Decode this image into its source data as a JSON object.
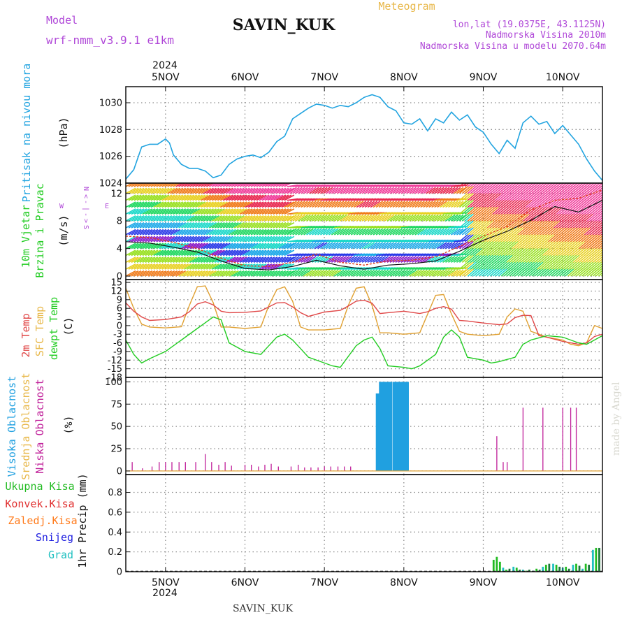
{
  "header": {
    "model_label": "Model",
    "model_name": "wrf-nmm_v3.9.1 e1km",
    "station": "SAVIN_KUK",
    "meteogram": "Meteogram",
    "lonlat": "lon,lat (19.0375E, 43.1125N)",
    "elevation": "Nadmorska Visina 2010m",
    "model_elevation": "Nadmorska Visina u modelu 2070.64m",
    "year": "2024",
    "footer_station": "SAVIN_KUK",
    "credit": "made by Angel"
  },
  "colors": {
    "pressure": "#22a4e0",
    "wind_speed": "#111111",
    "wind_gust": "#e04020",
    "temp_2m": "#e04848",
    "temp_sfc": "#e0a030",
    "dewpoint": "#22cc22",
    "cloud_high": "#20a0e0",
    "cloud_mid": "#e0a030",
    "cloud_low": "#c0209a",
    "precip_total": "#22bb22",
    "precip_conv": "#e03030",
    "precip_frozen": "#ff7a1a",
    "precip_snow": "#2020e0",
    "precip_graupel": "#20c0c0",
    "purple_text": "#b048d8",
    "gold_text": "#e8b84a"
  },
  "x_axis": {
    "days": [
      "5NOV",
      "6NOV",
      "7NOV",
      "8NOV",
      "9NOV",
      "10NOV"
    ],
    "day_positions": [
      0.5,
      1.5,
      2.5,
      3.5,
      4.5,
      5.5
    ],
    "range": [
      0,
      6
    ]
  },
  "panels": {
    "pressure": {
      "labels": [
        "Pritisak na nivou mora",
        "(hPa)"
      ],
      "ticks": [
        "1024",
        "1026",
        "1028",
        "1030"
      ]
    },
    "wind": {
      "labels": [
        "10m Vjetar",
        "Brzina i Pravac",
        "(m/s)"
      ],
      "ticks": [
        "0",
        "4",
        "8",
        "12"
      ],
      "compass": [
        "N",
        "<",
        "-",
        "|",
        "-",
        ">",
        "S",
        "W",
        "E"
      ]
    },
    "temperature": {
      "labels": [
        "2m Temp",
        "SFC Temp",
        "dewpt Temp",
        "(C)"
      ],
      "ticks": [
        "-18",
        "-15",
        "-12",
        "-9",
        "-6",
        "-3",
        "0",
        "3",
        "6",
        "9",
        "12",
        "15"
      ]
    },
    "clouds": {
      "labels": [
        "Visoka Oblacnost",
        "Srednja Oblacnost",
        "Niska Oblacnost",
        "(%)"
      ],
      "ticks": [
        "0",
        "25",
        "50",
        "75",
        "100"
      ]
    },
    "precip": {
      "labels": [
        "Ukupna Kisa",
        "Konvek.Kisa",
        "Zaledj.Kisa",
        "Snijeg",
        "Grad",
        "1hr Precip (mm)"
      ],
      "ticks": [
        "0",
        "0.2",
        "0.4",
        "0.6",
        "0.8"
      ]
    }
  },
  "chart_data": [
    {
      "type": "line",
      "title": "Pritisak na nivou mora",
      "ylabel": "(hPa)",
      "ylim": [
        1024,
        1031.2
      ],
      "x_unit": "days from 4 NOV 12:00 (day labels at 5NOV..10NOV)",
      "series": [
        {
          "name": "Pritisak na nivou mora",
          "x": [
            0,
            0.1,
            0.2,
            0.3,
            0.4,
            0.5,
            0.55,
            0.6,
            0.7,
            0.8,
            0.9,
            1.0,
            1.1,
            1.2,
            1.3,
            1.4,
            1.5,
            1.6,
            1.7,
            1.8,
            1.9,
            2.0,
            2.1,
            2.2,
            2.3,
            2.4,
            2.5,
            2.6,
            2.7,
            2.8,
            2.9,
            3.0,
            3.1,
            3.2,
            3.3,
            3.4,
            3.5,
            3.6,
            3.7,
            3.8,
            3.9,
            4.0,
            4.1,
            4.2,
            4.3,
            4.4,
            4.5,
            4.6,
            4.7,
            4.8,
            4.9,
            5.0,
            5.1,
            5.2,
            5.3,
            5.4,
            5.5,
            5.6,
            5.7,
            5.8,
            5.9,
            6.0
          ],
          "values": [
            1024.3,
            1025.0,
            1026.7,
            1026.9,
            1026.9,
            1027.3,
            1027.0,
            1026.1,
            1025.4,
            1025.1,
            1025.1,
            1024.9,
            1024.4,
            1024.6,
            1025.4,
            1025.8,
            1026.0,
            1026.1,
            1025.9,
            1026.3,
            1027.1,
            1027.5,
            1028.8,
            1029.2,
            1029.6,
            1029.9,
            1029.8,
            1029.6,
            1029.8,
            1029.7,
            1030.0,
            1030.4,
            1030.6,
            1030.4,
            1029.7,
            1029.4,
            1028.5,
            1028.4,
            1028.8,
            1027.9,
            1028.8,
            1028.5,
            1029.3,
            1028.7,
            1029.1,
            1028.2,
            1027.8,
            1026.9,
            1026.2,
            1027.2,
            1026.6,
            1028.5,
            1029.0,
            1028.4,
            1028.6,
            1027.7,
            1028.3,
            1027.6,
            1026.9,
            1025.8,
            1024.9,
            1024.2
          ]
        }
      ]
    },
    {
      "type": "line",
      "title": "10m Vjetar Brzina i Pravac",
      "ylabel": "(m/s)",
      "ylim": [
        -0.5,
        13.5
      ],
      "series": [
        {
          "name": "10m Vjetar",
          "x": [
            0,
            0.3,
            0.6,
            0.9,
            1.2,
            1.5,
            1.8,
            2.1,
            2.4,
            2.7,
            3.0,
            3.3,
            3.6,
            3.9,
            4.2,
            4.5,
            4.8,
            5.1,
            5.4,
            5.7,
            6.0
          ],
          "values": [
            5.0,
            4.8,
            4.2,
            3.5,
            2.2,
            1.1,
            0.9,
            1.4,
            2.3,
            1.5,
            1.0,
            1.6,
            1.8,
            2.2,
            3.6,
            5.2,
            6.5,
            8.1,
            10.1,
            9.3,
            11.0
          ]
        },
        {
          "name": "Udar vjetra",
          "x": [
            0,
            0.3,
            0.6,
            0.9,
            1.2,
            1.5,
            1.8,
            2.1,
            2.4,
            2.7,
            3.0,
            3.3,
            3.6,
            3.9,
            4.2,
            4.5,
            4.8,
            5.1,
            5.4,
            5.7,
            6.0
          ],
          "values": [
            5.8,
            5.6,
            4.9,
            4.0,
            2.6,
            1.5,
            1.4,
            2.0,
            3.2,
            2.0,
            1.6,
            2.2,
            2.3,
            2.8,
            4.3,
            5.8,
            7.2,
            9.6,
            11.0,
            11.3,
            12.5
          ]
        }
      ]
    },
    {
      "type": "line",
      "title": "Temperature",
      "ylabel": "(C)",
      "ylim": [
        -18,
        16
      ],
      "series": [
        {
          "name": "2m Temp",
          "x": [
            0,
            0.1,
            0.2,
            0.3,
            0.5,
            0.7,
            0.8,
            0.9,
            1.0,
            1.1,
            1.2,
            1.3,
            1.5,
            1.7,
            1.8,
            1.9,
            2.0,
            2.1,
            2.2,
            2.3,
            2.5,
            2.7,
            2.8,
            2.9,
            3.0,
            3.1,
            3.2,
            3.3,
            3.5,
            3.7,
            3.8,
            3.9,
            4.0,
            4.1,
            4.2,
            4.3,
            4.5,
            4.7,
            4.8,
            4.9,
            5.0,
            5.1,
            5.2,
            5.3,
            5.5,
            5.6,
            5.7,
            5.8,
            5.9,
            6.0
          ],
          "values": [
            7.9,
            5.0,
            3.0,
            1.8,
            2.1,
            3.0,
            4.8,
            7.5,
            8.3,
            7.2,
            5.0,
            4.5,
            4.6,
            5.1,
            6.5,
            7.9,
            8.0,
            6.5,
            4.5,
            3.2,
            4.7,
            5.3,
            6.8,
            8.5,
            8.8,
            7.8,
            4.2,
            4.5,
            5.0,
            4.2,
            4.8,
            6.0,
            6.6,
            5.7,
            1.8,
            1.6,
            0.9,
            0.3,
            0.6,
            2.8,
            3.6,
            3.5,
            -3.5,
            -4.0,
            -5.5,
            -6.0,
            -6.5,
            -6.0,
            -3.8,
            -3.0
          ]
        },
        {
          "name": "SFC Temp",
          "x": [
            0,
            0.1,
            0.2,
            0.3,
            0.5,
            0.7,
            0.8,
            0.9,
            1.0,
            1.1,
            1.2,
            1.3,
            1.5,
            1.7,
            1.8,
            1.9,
            2.0,
            2.1,
            2.2,
            2.3,
            2.5,
            2.7,
            2.8,
            2.9,
            3.0,
            3.1,
            3.2,
            3.3,
            3.5,
            3.7,
            3.8,
            3.9,
            4.0,
            4.1,
            4.2,
            4.3,
            4.5,
            4.7,
            4.8,
            4.9,
            5.0,
            5.1,
            5.2,
            5.3,
            5.5,
            5.6,
            5.7,
            5.8,
            5.9,
            6.0
          ],
          "values": [
            13.0,
            6.0,
            0.5,
            -0.5,
            -0.8,
            -0.4,
            7.0,
            13.5,
            13.8,
            8.0,
            -0.5,
            -0.5,
            -1.0,
            -0.5,
            7.0,
            12.5,
            13.5,
            8.5,
            -0.5,
            -1.5,
            -1.5,
            -1.0,
            7.0,
            13.0,
            13.5,
            7.0,
            -2.5,
            -2.5,
            -3.0,
            -2.5,
            4.0,
            10.5,
            10.8,
            4.0,
            -2.0,
            -3.0,
            -3.5,
            -3.0,
            3.0,
            5.8,
            5.0,
            -2.0,
            -3.0,
            -4.0,
            -5.0,
            -6.5,
            -7.0,
            -6.0,
            0.0,
            -1.0
          ]
        },
        {
          "name": "dewpt Temp",
          "x": [
            0,
            0.1,
            0.2,
            0.3,
            0.5,
            0.6,
            0.7,
            0.9,
            1.0,
            1.1,
            1.2,
            1.3,
            1.5,
            1.7,
            1.8,
            1.9,
            2.0,
            2.1,
            2.2,
            2.3,
            2.5,
            2.6,
            2.7,
            2.9,
            3.0,
            3.1,
            3.2,
            3.3,
            3.5,
            3.6,
            3.7,
            3.9,
            4.0,
            4.1,
            4.2,
            4.3,
            4.5,
            4.6,
            4.7,
            4.9,
            5.0,
            5.1,
            5.3,
            5.5,
            5.6,
            5.7,
            5.8,
            5.9,
            6.0
          ],
          "values": [
            -5.0,
            -10.0,
            -13.0,
            -11.5,
            -9.0,
            -7.0,
            -5.0,
            -1.0,
            1.0,
            3.0,
            2.0,
            -6.0,
            -9.0,
            -10.0,
            -7.0,
            -4.0,
            -3.0,
            -5.0,
            -8.0,
            -11.0,
            -13.0,
            -14.0,
            -14.5,
            -7.0,
            -5.0,
            -4.0,
            -8.0,
            -14.0,
            -14.5,
            -15.0,
            -14.0,
            -10.0,
            -4.0,
            -1.5,
            -4.0,
            -11.0,
            -12.0,
            -13.0,
            -12.5,
            -11.0,
            -6.5,
            -5.0,
            -3.5,
            -4.0,
            -5.0,
            -6.0,
            -6.5,
            -5.0,
            -3.5
          ]
        }
      ]
    },
    {
      "type": "bar",
      "title": "Oblacnost",
      "ylabel": "(%)",
      "ylim": [
        0,
        105
      ],
      "series": [
        {
          "name": "Visoka Oblacnost",
          "x": [
            3.17,
            3.21,
            3.25,
            3.29,
            3.33,
            3.38,
            3.42,
            3.46,
            3.5,
            3.54
          ],
          "values": [
            87,
            100,
            100,
            100,
            100,
            100,
            100,
            100,
            100,
            100
          ]
        },
        {
          "name": "Niska Oblacnost",
          "x": [
            0.08,
            0.21,
            0.33,
            0.42,
            0.5,
            0.58,
            0.67,
            0.75,
            0.88,
            1.0,
            1.08,
            1.17,
            1.25,
            1.33,
            1.5,
            1.58,
            1.67,
            1.75,
            1.83,
            1.92,
            2.08,
            2.17,
            2.25,
            2.33,
            2.42,
            2.5,
            2.58,
            2.67,
            2.75,
            2.83,
            4.67,
            4.75,
            4.8,
            5.0,
            5.25,
            5.5,
            5.6,
            5.67
          ],
          "values": [
            10,
            3,
            5,
            10,
            10,
            10,
            10,
            10,
            10,
            19,
            10,
            7,
            10,
            6,
            7,
            7,
            5,
            7,
            8,
            5,
            5,
            7,
            4,
            4,
            4,
            5,
            5,
            5,
            5,
            5,
            39,
            10,
            10,
            71,
            71,
            71,
            71,
            71
          ]
        }
      ]
    },
    {
      "type": "bar",
      "title": "1hr Precip",
      "ylabel": "1hr Precip (mm)",
      "ylim": [
        0,
        0.98
      ],
      "series": [
        {
          "name": "Ukupna Kisa",
          "x": [
            4.63,
            4.67,
            4.71,
            4.75,
            4.79,
            4.83,
            4.88,
            4.92,
            4.96,
            5.0,
            5.04,
            5.08,
            5.13,
            5.17,
            5.21,
            5.25,
            5.29,
            5.33,
            5.38,
            5.42,
            5.46,
            5.5,
            5.54,
            5.58,
            5.63,
            5.67,
            5.71,
            5.75,
            5.79,
            5.83,
            5.88,
            5.92,
            5.96
          ],
          "values": [
            0.12,
            0.15,
            0.1,
            0.04,
            0.02,
            0.03,
            0.05,
            0.04,
            0.02,
            0.02,
            0.01,
            0.02,
            0.01,
            0.03,
            0.02,
            0.05,
            0.07,
            0.08,
            0.08,
            0.07,
            0.05,
            0.04,
            0.05,
            0.03,
            0.07,
            0.08,
            0.06,
            0.03,
            0.08,
            0.07,
            0.22,
            0.24,
            0.24
          ]
        }
      ]
    }
  ]
}
